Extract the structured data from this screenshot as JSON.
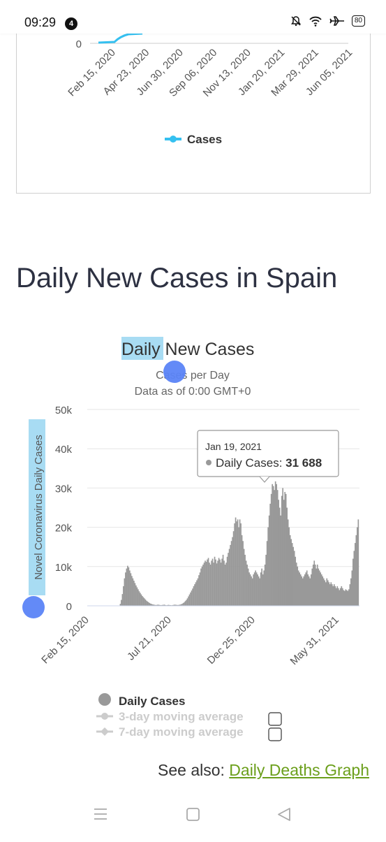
{
  "status_bar": {
    "time": "09:29",
    "notification_count": "4",
    "battery": "80"
  },
  "top_chart": {
    "y_tick": "0",
    "x_ticks": [
      "Feb 15, 2020",
      "Apr 23, 2020",
      "Jun 30, 2020",
      "Sep 06, 2020",
      "Nov 13, 2020",
      "Jan 20, 2021",
      "Mar 29, 2021",
      "Jun 05, 2021"
    ],
    "legend": "Cases",
    "line_color": "#35c0f0"
  },
  "section_heading": "Daily New Cases in Spain",
  "chart_data": {
    "type": "bar",
    "title_highlighted": "Daily",
    "title_rest": " New Cases",
    "subtitle_line1": "Cases per Day",
    "subtitle_line2": "Data as of 0:00 GMT+0",
    "ylabel": "Novel Coronavirus Daily Cases",
    "ylim": [
      0,
      50000
    ],
    "y_ticks": [
      "0",
      "10k",
      "20k",
      "30k",
      "40k",
      "50k"
    ],
    "x_ticks": [
      "Feb 15, 2020",
      "Jul 21, 2020",
      "Dec 25, 2020",
      "May 31, 2021"
    ],
    "bar_color": "#999999",
    "series": [
      {
        "name": "Daily Cases",
        "values": [
          0,
          0,
          0,
          0,
          0,
          0,
          0,
          0,
          0,
          0,
          0,
          0,
          0,
          0,
          0,
          0,
          0,
          0,
          0,
          0,
          0,
          0,
          0,
          500,
          1500,
          3000,
          5000,
          7000,
          8500,
          9500,
          10200,
          9800,
          9000,
          8300,
          7600,
          7000,
          6400,
          5800,
          5200,
          4700,
          4200,
          3700,
          3300,
          2900,
          2500,
          2200,
          1900,
          1600,
          1300,
          1100,
          900,
          700,
          550,
          450,
          350,
          300,
          250,
          200,
          250,
          300,
          250,
          200,
          180,
          220,
          250,
          300,
          200,
          150,
          200,
          250,
          200,
          180,
          150,
          200,
          250,
          300,
          260,
          220,
          200,
          250,
          300,
          400,
          500,
          700,
          900,
          1200,
          1500,
          1900,
          2400,
          2900,
          3400,
          3900,
          4400,
          5000,
          5500,
          6000,
          6500,
          7000,
          7800,
          8500,
          9500,
          10000,
          10500,
          11000,
          11500,
          11200,
          11800,
          12200,
          11000,
          10500,
          11500,
          12000,
          11000,
          12500,
          11800,
          10800,
          11500,
          12200,
          11800,
          11000,
          12000,
          13000,
          11500,
          10500,
          11000,
          12500,
          13500,
          14500,
          15500,
          16500,
          17500,
          19000,
          21000,
          22500,
          21500,
          22000,
          20000,
          22000,
          21000,
          18000,
          16500,
          14500,
          13000,
          11500,
          10500,
          9500,
          8500,
          8000,
          7500,
          7000,
          8000,
          8500,
          9000,
          8500,
          8000,
          7500,
          7000,
          8500,
          9500,
          8000,
          9000,
          10500,
          13000,
          16500,
          20000,
          23000,
          26000,
          28500,
          31000,
          30500,
          29500,
          31688,
          31000,
          29500,
          27000,
          25000,
          23000,
          28000,
          30000,
          27000,
          29000,
          28500,
          25000,
          22000,
          20000,
          18000,
          17000,
          16000,
          15000,
          14000,
          12500,
          11000,
          10000,
          9000,
          8500,
          8000,
          7500,
          7000,
          7500,
          8000,
          8500,
          9000,
          8000,
          7500,
          7000,
          8000,
          9500,
          10500,
          11500,
          10500,
          9500,
          10500,
          9500,
          9000,
          8500,
          8000,
          7500,
          7000,
          6500,
          6000,
          7000,
          6500,
          6000,
          5500,
          6000,
          5500,
          5000,
          5500,
          5000,
          4500,
          5000,
          4500,
          4000,
          4500,
          5000,
          4500,
          4000,
          3800,
          4200,
          4000,
          3800,
          4200,
          5500,
          7000,
          9000,
          12000,
          14000,
          16000,
          18000,
          20000,
          22000
        ]
      }
    ],
    "tooltip": {
      "date": "Jan 19, 2021",
      "label": "Daily Cases:",
      "value": "31 688"
    },
    "legend": [
      {
        "label": "Daily Cases",
        "color": "#999999"
      },
      {
        "label": "3-day moving average",
        "color": "#cccccc"
      },
      {
        "label": "7-day moving average",
        "color": "#cccccc"
      }
    ]
  },
  "see_also": {
    "prefix": "See also: ",
    "link": "Daily Deaths Graph"
  }
}
